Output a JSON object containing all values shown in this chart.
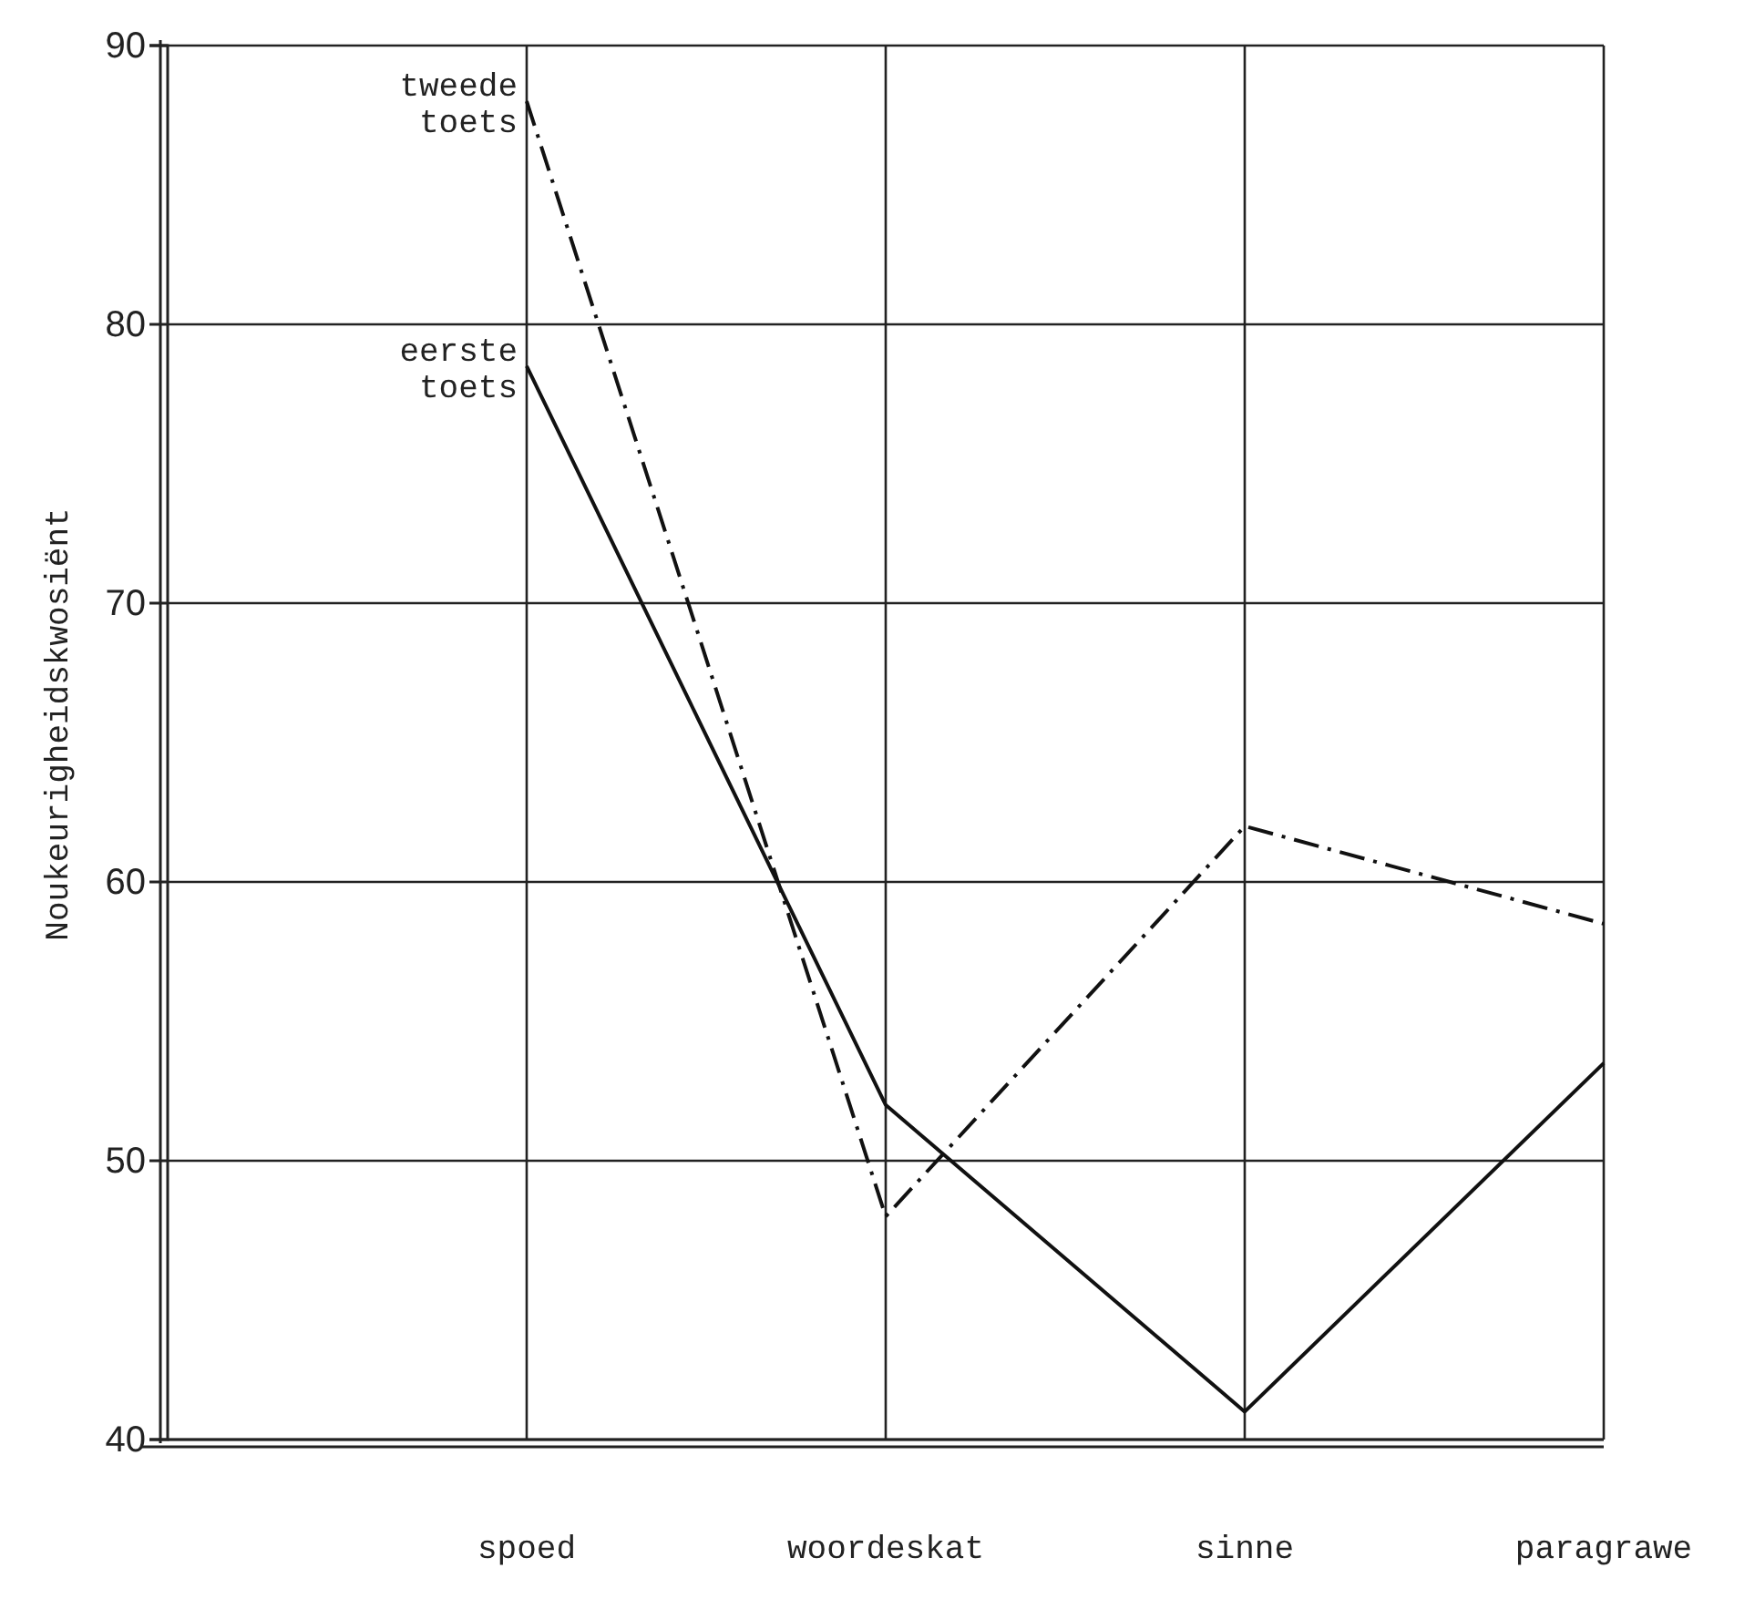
{
  "chart_data": {
    "type": "line",
    "ylabel": "Noukeurigheidskwosiënt",
    "categories": [
      "spoed",
      "woordeskat",
      "sinne",
      "paragrawe"
    ],
    "series": [
      {
        "name": "eerste toets",
        "color": "#111111",
        "line_style": "solid",
        "values": [
          78.5,
          52,
          41,
          53.5
        ]
      },
      {
        "name": "tweede toets",
        "color": "#111111",
        "line_style": "dashed",
        "values": [
          88,
          48,
          62,
          58.5
        ]
      }
    ],
    "ylim": [
      40,
      90
    ],
    "yticks": [
      40,
      50,
      60,
      70,
      80,
      90
    ],
    "grid": true,
    "marker": "none",
    "legend": false
  }
}
